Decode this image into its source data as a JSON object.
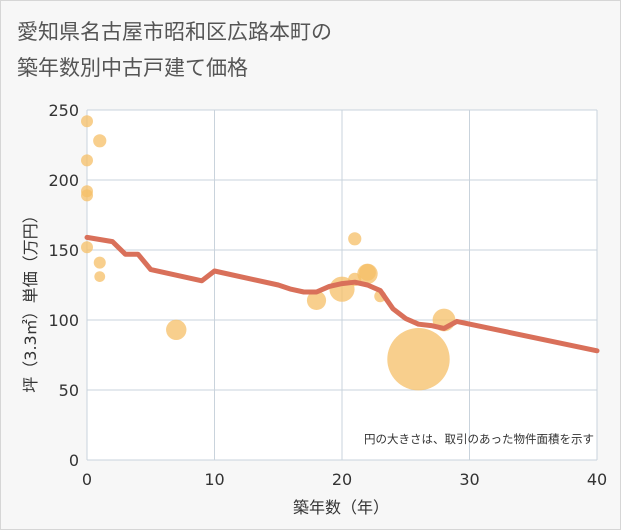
{
  "chart_data": {
    "type": "scatter",
    "title_lines": [
      "愛知県名古屋市昭和区広路本町の",
      "築年数別中古戸建て価格"
    ],
    "xlabel": "築年数（年）",
    "ylabel": "坪（3.3㎡）単価（万円）",
    "xlim": [
      0,
      40
    ],
    "ylim": [
      0,
      250
    ],
    "x_ticks": [
      0,
      10,
      20,
      30,
      40
    ],
    "y_ticks": [
      0,
      50,
      100,
      150,
      200,
      250
    ],
    "grid": true,
    "note": "円の大きさは、取引のあった物件面積を示す",
    "colors": {
      "bubble": "#f5bf67",
      "trend": "#d9705a",
      "grid": "#c9d3dc",
      "plot_bg": "#ffffff"
    },
    "bubbles": [
      {
        "x": 0,
        "y": 242,
        "size": 1
      },
      {
        "x": 0,
        "y": 214,
        "size": 1
      },
      {
        "x": 0,
        "y": 192,
        "size": 1
      },
      {
        "x": 0,
        "y": 189,
        "size": 1
      },
      {
        "x": 0,
        "y": 152,
        "size": 1
      },
      {
        "x": 1,
        "y": 228,
        "size": 1.1
      },
      {
        "x": 1,
        "y": 141,
        "size": 1
      },
      {
        "x": 1,
        "y": 131,
        "size": 0.9
      },
      {
        "x": 7,
        "y": 93,
        "size": 1.7
      },
      {
        "x": 18,
        "y": 114,
        "size": 1.6
      },
      {
        "x": 20,
        "y": 122,
        "size": 2.1
      },
      {
        "x": 21,
        "y": 158,
        "size": 1.1
      },
      {
        "x": 21,
        "y": 129,
        "size": 1.1
      },
      {
        "x": 22,
        "y": 133,
        "size": 1.7
      },
      {
        "x": 22,
        "y": 134,
        "size": 1.4
      },
      {
        "x": 23,
        "y": 117,
        "size": 1
      },
      {
        "x": 26,
        "y": 72,
        "size": 5.2
      },
      {
        "x": 28,
        "y": 100,
        "size": 1.9
      }
    ],
    "trend": {
      "x": [
        0,
        2,
        3,
        4,
        5,
        9,
        10,
        13,
        15,
        16,
        17,
        18,
        19,
        20,
        21,
        22,
        23,
        24,
        25,
        26,
        27,
        28,
        29,
        40
      ],
      "y": [
        159,
        156,
        147,
        147,
        136,
        128,
        135,
        129,
        125,
        122,
        120,
        120,
        124,
        126,
        127,
        125,
        121,
        108,
        101,
        97,
        96,
        94,
        99,
        78
      ]
    }
  }
}
